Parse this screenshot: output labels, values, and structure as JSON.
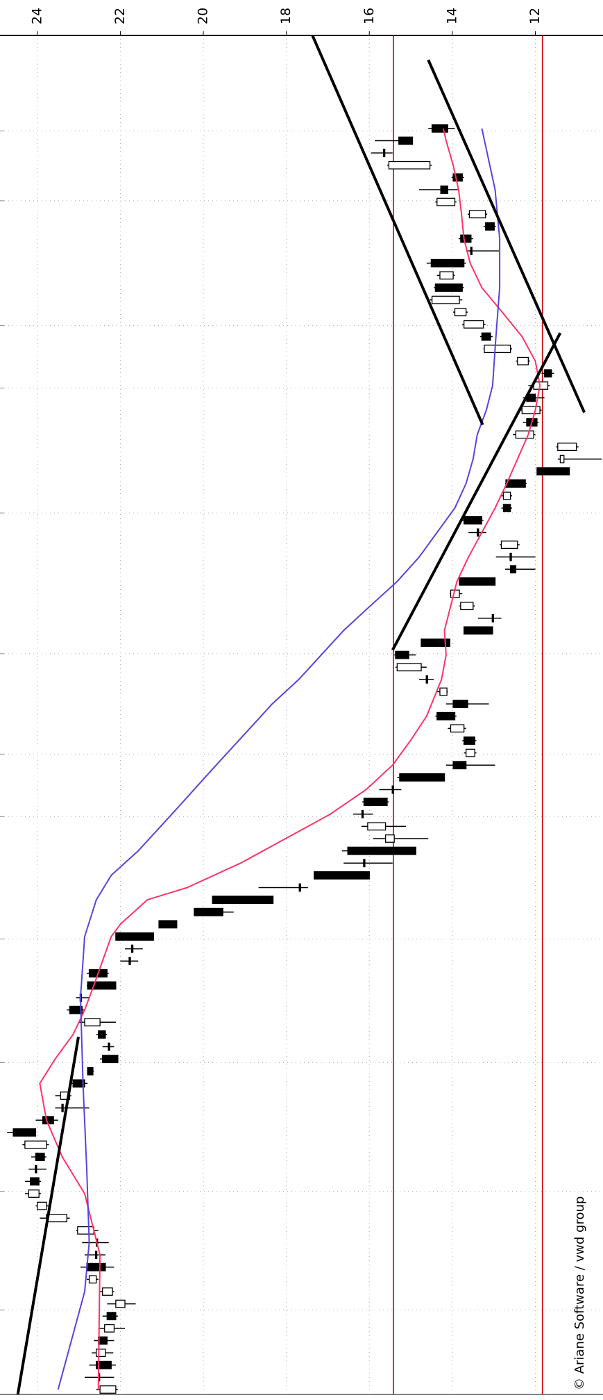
{
  "chart_data": {
    "type": "candlestick",
    "xlim": [
      -0.4,
      110.6
    ],
    "ylim": [
      10.37,
      24.9
    ],
    "yticks": [
      12,
      14,
      16,
      18,
      20,
      22,
      24
    ],
    "xgrid": [
      6.5,
      16.2,
      26.7,
      36.8,
      46.8,
      51.9,
      60.1,
      71.6,
      81.8,
      86.9,
      97.1,
      102.8
    ],
    "grid": true,
    "up_color": "#ffffff",
    "down_color": "#000000",
    "open": [
      22.11,
      22.53,
      22.58,
      22.36,
      22.53,
      22.15,
      22.32,
      21.89,
      22.19,
      22.58,
      22.81,
      22.6,
      22.58,
      22.64,
      23.29,
      23.78,
      23.96,
      24.17,
      24.05,
      24.04,
      23.78,
      24.58,
      23.87,
      23.41,
      23.22,
      23.14,
      22.79,
      22.43,
      22.29,
      22.53,
      22.49,
      23.22,
      22.97,
      22.79,
      22.75,
      21.79,
      21.73,
      22.11,
      21.07,
      20.22,
      19.78,
      17.69,
      17.33,
      16.14,
      16.52,
      15.4,
      15.61,
      16.18,
      16.13,
      15.45,
      15.27,
      13.98,
      13.46,
      13.72,
      13.72,
      14.37,
      13.98,
      14.13,
      14.63,
      14.75,
      15.37,
      14.75,
      13.72,
      13.04,
      13.5,
      13.83,
      13.83,
      12.6,
      12.61,
      12.43,
      13.4,
      13.72,
      12.77,
      12.6,
      12.71,
      11.96,
      11.31,
      11.01,
      12.04,
      12.21,
      11.89,
      12.21,
      11.7,
      11.78,
      12.17,
      12.6,
      13.29,
      13.25,
      13.67,
      13.83,
      14.41,
      13.98,
      14.51,
      13.56,
      13.8,
      13.2,
      13.2,
      13.94,
      14.28,
      13.98,
      14.54,
      15.66,
      15.29,
      14.49
    ],
    "high": [
      22.58,
      22.86,
      22.75,
      22.69,
      22.64,
      22.53,
      22.43,
      22.32,
      22.49,
      22.81,
      22.96,
      22.86,
      22.92,
      23.07,
      23.94,
      24.04,
      24.3,
      24.3,
      24.21,
      24.15,
      24.36,
      24.73,
      24.04,
      23.57,
      23.57,
      23.22,
      22.79,
      22.49,
      22.43,
      22.58,
      23.01,
      23.29,
      23.07,
      22.81,
      22.81,
      22.0,
      21.89,
      22.11,
      21.07,
      20.22,
      19.78,
      18.67,
      17.33,
      16.62,
      16.66,
      15.91,
      16.19,
      16.39,
      16.17,
      15.76,
      15.33,
      14.15,
      13.72,
      13.76,
      14.11,
      14.41,
      14.15,
      14.37,
      14.8,
      15.37,
      15.4,
      14.75,
      13.72,
      13.38,
      13.83,
      14.06,
      13.85,
      12.73,
      12.95,
      12.86,
      13.61,
      13.76,
      12.82,
      12.82,
      12.73,
      11.96,
      11.46,
      11.5,
      12.54,
      12.3,
      12.38,
      12.3,
      12.17,
      11.85,
      12.47,
      13.25,
      13.33,
      13.76,
      13.98,
      14.54,
      14.45,
      14.37,
      14.62,
      13.67,
      13.85,
      13.25,
      13.63,
      14.41,
      14.8,
      14.02,
      15.57,
      15.96,
      15.87,
      14.58
    ],
    "low": [
      22.06,
      22.15,
      22.11,
      22.17,
      22.15,
      21.89,
      22.06,
      21.63,
      22.15,
      22.53,
      22.15,
      22.36,
      22.28,
      22.53,
      23.22,
      23.72,
      23.91,
      23.91,
      23.78,
      23.78,
      23.72,
      24.04,
      23.5,
      22.75,
      23.18,
      22.79,
      22.64,
      22.06,
      22.15,
      22.32,
      22.11,
      22.86,
      22.75,
      22.11,
      22.28,
      21.57,
      21.46,
      21.2,
      20.64,
      19.27,
      18.32,
      17.48,
      16.0,
      15.44,
      14.88,
      14.58,
      15.12,
      15.91,
      15.53,
      15.23,
      14.19,
      12.97,
      13.42,
      13.42,
      13.67,
      13.9,
      13.12,
      14.11,
      14.45,
      14.62,
      14.88,
      14.06,
      13.03,
      12.82,
      13.46,
      13.76,
      12.97,
      12.0,
      12.0,
      12.38,
      13.18,
      13.25,
      12.56,
      12.56,
      12.21,
      11.18,
      10.4,
      10.96,
      12.0,
      11.92,
      11.85,
      11.78,
      11.65,
      11.55,
      12.13,
      12.56,
      13.03,
      13.2,
      13.63,
      13.76,
      13.72,
      13.94,
      13.67,
      12.86,
      13.5,
      12.95,
      13.16,
      13.9,
      13.85,
      13.72,
      14.49,
      15.44,
      14.96,
      13.94
    ],
    "close": [
      22.49,
      22.5,
      22.22,
      22.58,
      22.32,
      22.38,
      22.11,
      22.11,
      22.43,
      22.75,
      22.36,
      22.58,
      22.56,
      23.03,
      23.78,
      24.0,
      24.21,
      23.96,
      24.04,
      23.83,
      24.3,
      24.04,
      23.61,
      23.4,
      23.44,
      22.86,
      22.66,
      22.06,
      22.28,
      22.36,
      22.86,
      22.92,
      22.96,
      22.11,
      22.32,
      21.78,
      21.72,
      21.2,
      20.64,
      19.53,
      18.32,
      17.68,
      16.0,
      16.13,
      14.88,
      15.61,
      16.04,
      16.17,
      15.57,
      15.44,
      14.19,
      13.67,
      13.67,
      13.46,
      14.04,
      13.94,
      13.63,
      14.3,
      14.62,
      15.33,
      15.05,
      14.06,
      13.03,
      13.03,
      13.8,
      14.04,
      12.97,
      12.47,
      12.6,
      12.82,
      13.38,
      13.29,
      12.6,
      12.77,
      12.24,
      11.18,
      11.4,
      11.46,
      12.47,
      11.96,
      12.32,
      12.0,
      12.04,
      11.61,
      12.43,
      13.23,
      13.08,
      13.72,
      13.94,
      14.49,
      13.76,
      14.3,
      13.72,
      13.55,
      13.55,
      12.99,
      13.59,
      14.37,
      14.11,
      13.76,
      15.53,
      15.65,
      14.96,
      14.11
    ],
    "lines": [
      {
        "color": "#ff3366",
        "x": [
          0,
          11,
          16,
          19,
          22,
          25,
          27,
          29,
          31,
          33,
          37,
          38,
          40,
          41,
          43,
          45,
          47,
          49,
          51,
          53,
          55,
          58,
          60,
          62,
          64,
          66,
          68,
          70,
          72,
          74,
          76,
          78,
          80,
          82,
          84,
          86,
          88,
          90,
          92,
          94,
          96,
          98,
          100,
          102,
          103
        ],
        "values": [
          22.53,
          22.49,
          22.86,
          23.4,
          23.78,
          23.94,
          23.57,
          23.14,
          22.86,
          22.64,
          22.22,
          22.0,
          21.35,
          20.39,
          19.1,
          18.02,
          16.94,
          16.08,
          15.44,
          15.01,
          14.62,
          14.26,
          14.15,
          14.19,
          14.04,
          13.89,
          13.61,
          13.29,
          12.97,
          12.69,
          12.43,
          12.17,
          12.0,
          11.89,
          12.0,
          12.32,
          12.8,
          13.29,
          13.57,
          13.72,
          13.78,
          13.85,
          13.98,
          14.15,
          14.22
        ]
      },
      {
        "color": "#5544dd",
        "x": [
          0,
          4,
          8,
          12,
          18,
          25,
          32,
          37,
          40,
          42,
          44,
          46,
          48,
          50,
          52,
          54,
          56,
          58,
          60,
          62,
          64,
          66,
          68,
          70,
          72,
          74,
          76,
          78,
          80,
          82,
          86,
          90,
          94,
          98,
          103
        ],
        "values": [
          23.5,
          23.18,
          22.86,
          22.75,
          22.81,
          22.9,
          22.96,
          22.86,
          22.58,
          22.22,
          21.57,
          21.03,
          20.49,
          19.96,
          19.42,
          18.88,
          18.34,
          17.7,
          17.16,
          16.62,
          15.98,
          15.33,
          14.8,
          14.37,
          13.94,
          13.67,
          13.5,
          13.4,
          13.18,
          13.03,
          12.95,
          12.86,
          12.86,
          12.97,
          13.29
        ]
      }
    ],
    "trend_color": "#000000",
    "trend_lines": [
      {
        "x": [
          -0.4,
          28.8
        ],
        "values": [
          24.47,
          23.01
        ]
      },
      {
        "x": [
          110.6,
          78.8
        ],
        "values": [
          17.37,
          13.27
        ]
      },
      {
        "x": [
          108.6,
          79.8
        ],
        "values": [
          14.58,
          10.82
        ]
      },
      {
        "x": [
          60.4,
          86.3
        ],
        "values": [
          15.44,
          11.4
        ]
      }
    ],
    "hline_color": "#cc0000",
    "hlines": [
      15.42,
      11.83
    ],
    "credit": "© Ariane Software / vwd group"
  }
}
